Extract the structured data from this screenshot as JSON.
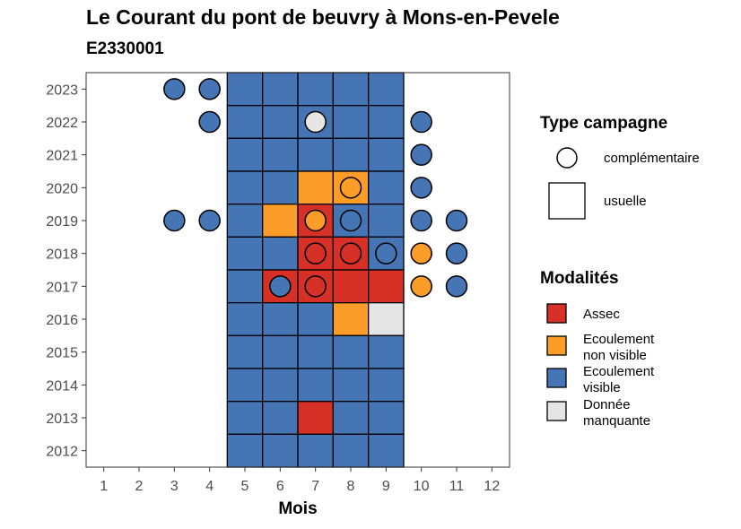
{
  "chart_data": {
    "type": "heatmap",
    "title": "Le Courant du pont de beuvry à Mons-en-Pevele",
    "subtitle": "E2330001",
    "xlabel": "Mois",
    "ylabel": "",
    "x_ticks": [
      "1",
      "2",
      "3",
      "4",
      "5",
      "6",
      "7",
      "8",
      "9",
      "10",
      "11",
      "12"
    ],
    "y_ticks": [
      "2012",
      "2013",
      "2014",
      "2015",
      "2016",
      "2017",
      "2018",
      "2019",
      "2020",
      "2021",
      "2022",
      "2023"
    ],
    "xlim": [
      0.5,
      12.5
    ],
    "ylim": [
      2011.5,
      2023.5
    ],
    "grid": false,
    "colors": {
      "assec": "#d73027",
      "ecoulement_non_visible": "#fc9d2a",
      "ecoulement_visible": "#4575b4",
      "donnee_manquante": "#e5e5e5"
    },
    "legend_type": {
      "title": "Type campagne",
      "items": [
        {
          "key": "complementaire",
          "label": "complémentaire",
          "shape": "circle"
        },
        {
          "key": "usuelle",
          "label": "usuelle",
          "shape": "square"
        }
      ]
    },
    "legend_modalites": {
      "title": "Modalités",
      "items": [
        {
          "key": "assec",
          "lines": [
            "Assec"
          ]
        },
        {
          "key": "ecoulement_non_visible",
          "lines": [
            "Ecoulement",
            "non visible"
          ]
        },
        {
          "key": "ecoulement_visible",
          "lines": [
            "Ecoulement",
            "visible"
          ]
        },
        {
          "key": "donnee_manquante",
          "lines": [
            "Donnée",
            "manquante"
          ]
        }
      ]
    },
    "usuelle": [
      {
        "year": 2023,
        "months": [
          "ecoulement_visible",
          "ecoulement_visible",
          "ecoulement_visible",
          "ecoulement_visible",
          "ecoulement_visible"
        ]
      },
      {
        "year": 2022,
        "months": [
          "ecoulement_visible",
          "ecoulement_visible",
          "ecoulement_visible",
          "ecoulement_visible",
          "ecoulement_visible"
        ]
      },
      {
        "year": 2021,
        "months": [
          "ecoulement_visible",
          "ecoulement_visible",
          "ecoulement_visible",
          "ecoulement_visible",
          "ecoulement_visible"
        ]
      },
      {
        "year": 2020,
        "months": [
          "ecoulement_visible",
          "ecoulement_visible",
          "ecoulement_non_visible",
          "ecoulement_non_visible",
          "ecoulement_visible"
        ]
      },
      {
        "year": 2019,
        "months": [
          "ecoulement_visible",
          "ecoulement_non_visible",
          "assec",
          "ecoulement_visible",
          "ecoulement_visible"
        ]
      },
      {
        "year": 2018,
        "months": [
          "ecoulement_visible",
          "ecoulement_visible",
          "assec",
          "assec",
          "ecoulement_visible"
        ]
      },
      {
        "year": 2017,
        "months": [
          "ecoulement_visible",
          "assec",
          "assec",
          "assec",
          "assec"
        ]
      },
      {
        "year": 2016,
        "months": [
          "ecoulement_visible",
          "ecoulement_visible",
          "ecoulement_visible",
          "ecoulement_non_visible",
          "donnee_manquante"
        ]
      },
      {
        "year": 2015,
        "months": [
          "ecoulement_visible",
          "ecoulement_visible",
          "ecoulement_visible",
          "ecoulement_visible",
          "ecoulement_visible"
        ]
      },
      {
        "year": 2014,
        "months": [
          "ecoulement_visible",
          "ecoulement_visible",
          "ecoulement_visible",
          "ecoulement_visible",
          "ecoulement_visible"
        ]
      },
      {
        "year": 2013,
        "months": [
          "ecoulement_visible",
          "ecoulement_visible",
          "assec",
          "ecoulement_visible",
          "ecoulement_visible"
        ]
      },
      {
        "year": 2012,
        "months": [
          "ecoulement_visible",
          "ecoulement_visible",
          "ecoulement_visible",
          "ecoulement_visible",
          "ecoulement_visible"
        ]
      }
    ],
    "usuelle_months": [
      5,
      6,
      7,
      8,
      9
    ],
    "complementaire": [
      {
        "year": 2023,
        "month": 3,
        "value": "ecoulement_visible"
      },
      {
        "year": 2023,
        "month": 4,
        "value": "ecoulement_visible"
      },
      {
        "year": 2022,
        "month": 4,
        "value": "ecoulement_visible"
      },
      {
        "year": 2022,
        "month": 7,
        "value": "donnee_manquante"
      },
      {
        "year": 2022,
        "month": 10,
        "value": "ecoulement_visible"
      },
      {
        "year": 2021,
        "month": 10,
        "value": "ecoulement_visible"
      },
      {
        "year": 2020,
        "month": 8,
        "value": "ecoulement_non_visible"
      },
      {
        "year": 2020,
        "month": 10,
        "value": "ecoulement_visible"
      },
      {
        "year": 2019,
        "month": 3,
        "value": "ecoulement_visible"
      },
      {
        "year": 2019,
        "month": 4,
        "value": "ecoulement_visible"
      },
      {
        "year": 2019,
        "month": 7,
        "value": "ecoulement_non_visible"
      },
      {
        "year": 2019,
        "month": 8,
        "value": "ecoulement_visible"
      },
      {
        "year": 2019,
        "month": 10,
        "value": "ecoulement_visible"
      },
      {
        "year": 2019,
        "month": 11,
        "value": "ecoulement_visible"
      },
      {
        "year": 2018,
        "month": 7,
        "value": "assec"
      },
      {
        "year": 2018,
        "month": 8,
        "value": "assec"
      },
      {
        "year": 2018,
        "month": 9,
        "value": "ecoulement_visible"
      },
      {
        "year": 2018,
        "month": 10,
        "value": "ecoulement_non_visible"
      },
      {
        "year": 2018,
        "month": 11,
        "value": "ecoulement_visible"
      },
      {
        "year": 2017,
        "month": 6,
        "value": "ecoulement_visible"
      },
      {
        "year": 2017,
        "month": 7,
        "value": "assec"
      },
      {
        "year": 2017,
        "month": 10,
        "value": "ecoulement_non_visible"
      },
      {
        "year": 2017,
        "month": 11,
        "value": "ecoulement_visible"
      }
    ]
  }
}
